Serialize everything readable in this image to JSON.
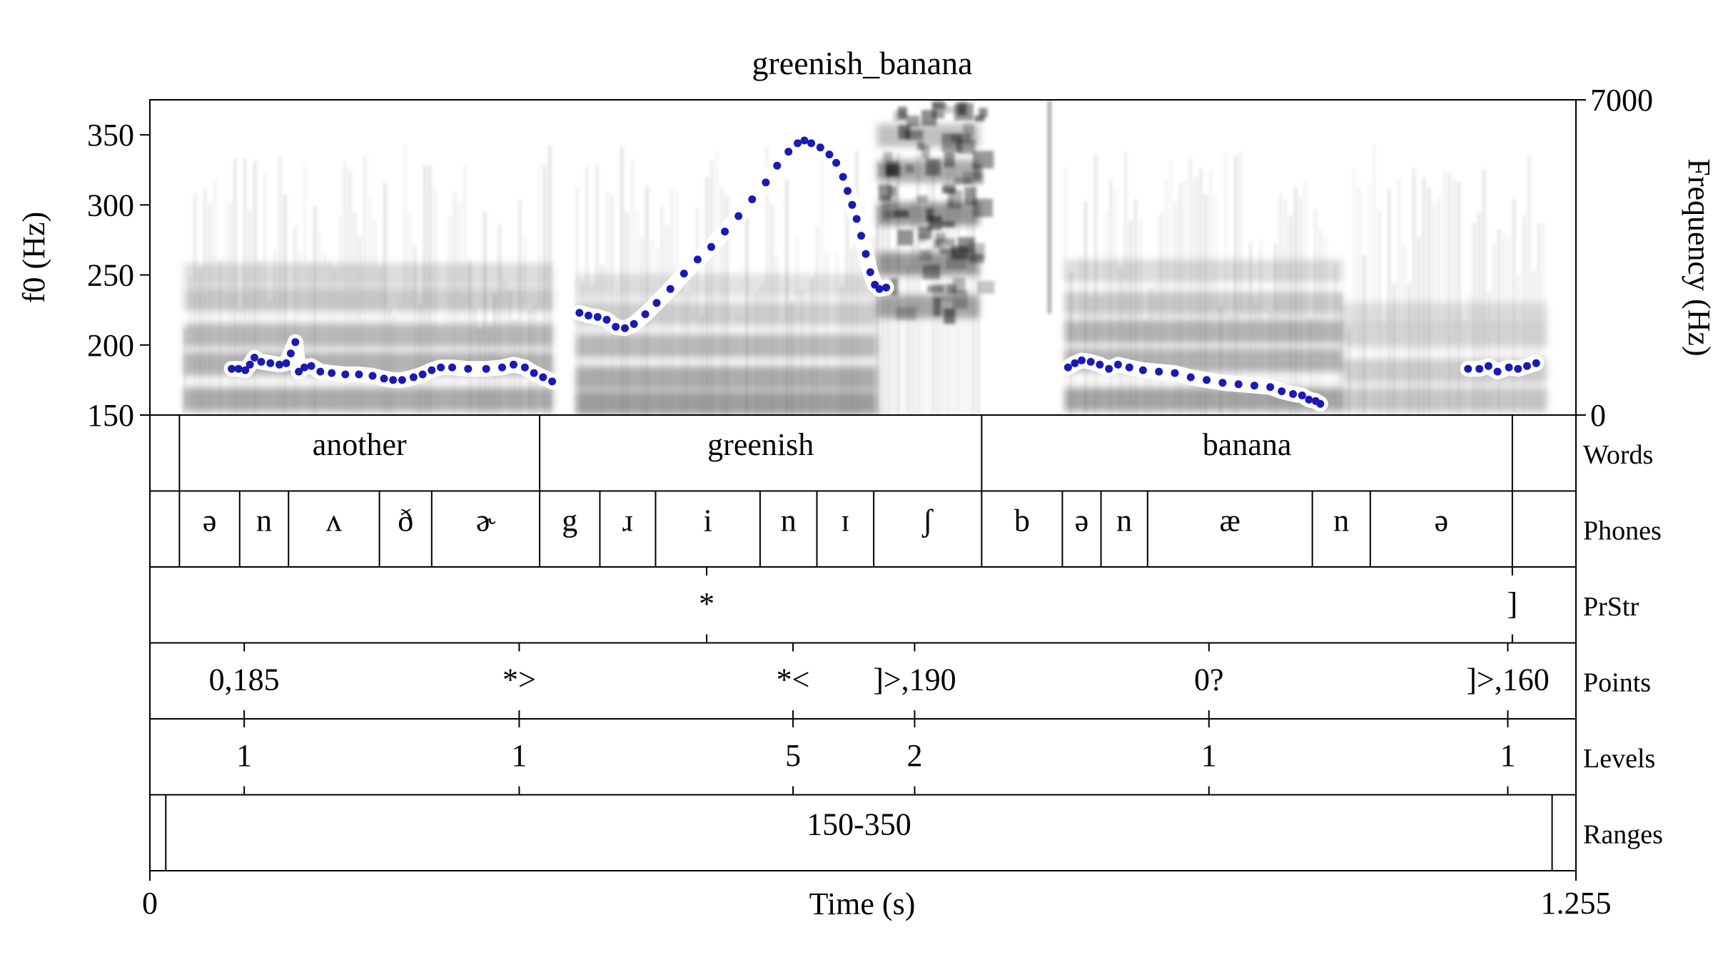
{
  "chart_data": {
    "type": "line",
    "title": "greenish_banana",
    "xlabel": "Time (s)",
    "ylabel_left": "f0 (Hz)",
    "ylabel_right": "Frequency (Hz)",
    "x_range": [
      0,
      1.255
    ],
    "x_tick_labels": [
      "0",
      "1.255"
    ],
    "f0_range": [
      150,
      375
    ],
    "f0_ticks": [
      150,
      200,
      250,
      300,
      350
    ],
    "freq_range": [
      0,
      7000
    ],
    "freq_tick_labels": [
      "0",
      "7000"
    ],
    "pitch_color": "#1a1ab4",
    "pitch_series": [
      {
        "name": "",
        "points": [
          [
            0.072,
            183
          ],
          [
            0.078,
            183
          ],
          [
            0.084,
            182
          ],
          [
            0.088,
            186
          ],
          [
            0.092,
            191
          ],
          [
            0.098,
            188
          ],
          [
            0.106,
            187
          ],
          [
            0.114,
            186
          ],
          [
            0.12,
            187
          ],
          [
            0.124,
            194
          ],
          [
            0.128,
            202
          ],
          [
            0.131,
            181
          ],
          [
            0.136,
            184
          ],
          [
            0.142,
            185
          ],
          [
            0.15,
            181
          ],
          [
            0.16,
            180
          ],
          [
            0.172,
            179
          ],
          [
            0.184,
            179
          ],
          [
            0.196,
            178
          ],
          [
            0.206,
            176
          ],
          [
            0.214,
            175
          ],
          [
            0.222,
            175
          ],
          [
            0.232,
            177
          ],
          [
            0.24,
            179
          ],
          [
            0.248,
            182
          ],
          [
            0.256,
            184
          ],
          [
            0.266,
            184
          ],
          [
            0.28,
            183
          ],
          [
            0.296,
            183
          ],
          [
            0.31,
            184
          ],
          [
            0.32,
            186
          ],
          [
            0.33,
            184
          ],
          [
            0.338,
            180
          ],
          [
            0.346,
            177
          ],
          [
            0.354,
            174
          ]
        ]
      },
      {
        "name": "",
        "points": [
          [
            0.378,
            223
          ],
          [
            0.386,
            221
          ],
          [
            0.394,
            220
          ],
          [
            0.402,
            218
          ],
          [
            0.41,
            213
          ],
          [
            0.418,
            212
          ],
          [
            0.426,
            215
          ],
          [
            0.436,
            222
          ],
          [
            0.446,
            230
          ],
          [
            0.458,
            240
          ],
          [
            0.47,
            251
          ],
          [
            0.482,
            261
          ],
          [
            0.494,
            270
          ],
          [
            0.506,
            281
          ],
          [
            0.518,
            292
          ],
          [
            0.53,
            304
          ],
          [
            0.542,
            316
          ],
          [
            0.552,
            328
          ],
          [
            0.562,
            338
          ],
          [
            0.57,
            344
          ],
          [
            0.576,
            346
          ],
          [
            0.582,
            344
          ],
          [
            0.59,
            341
          ],
          [
            0.598,
            336
          ],
          [
            0.604,
            330
          ],
          [
            0.61,
            320
          ],
          [
            0.614,
            310
          ],
          [
            0.618,
            300
          ],
          [
            0.622,
            290
          ],
          [
            0.626,
            278
          ],
          [
            0.63,
            265
          ],
          [
            0.634,
            252
          ],
          [
            0.638,
            243
          ],
          [
            0.642,
            240
          ],
          [
            0.648,
            241
          ]
        ]
      },
      {
        "name": "",
        "points": [
          [
            0.808,
            184
          ],
          [
            0.814,
            187
          ],
          [
            0.82,
            189
          ],
          [
            0.828,
            188
          ],
          [
            0.836,
            186
          ],
          [
            0.844,
            183
          ],
          [
            0.852,
            186
          ],
          [
            0.862,
            184
          ],
          [
            0.874,
            182
          ],
          [
            0.888,
            181
          ],
          [
            0.902,
            180
          ],
          [
            0.916,
            177
          ],
          [
            0.93,
            175
          ],
          [
            0.944,
            173
          ],
          [
            0.958,
            172
          ],
          [
            0.972,
            171
          ],
          [
            0.986,
            170
          ],
          [
            0.996,
            167
          ],
          [
            1.006,
            165
          ],
          [
            1.014,
            164
          ],
          [
            1.02,
            161
          ],
          [
            1.026,
            160
          ],
          [
            1.03,
            158
          ]
        ]
      },
      {
        "name": "",
        "points": [
          [
            1.16,
            183
          ],
          [
            1.17,
            183
          ],
          [
            1.178,
            185
          ],
          [
            1.186,
            181
          ],
          [
            1.196,
            184
          ],
          [
            1.204,
            183
          ],
          [
            1.212,
            185
          ],
          [
            1.22,
            187
          ]
        ]
      }
    ],
    "tiers": [
      {
        "label": "Words",
        "type": "interval",
        "intervals": [
          {
            "start": 0,
            "end": 0.026,
            "text": ""
          },
          {
            "start": 0.026,
            "end": 0.343,
            "text": "another"
          },
          {
            "start": 0.343,
            "end": 0.732,
            "text": "greenish"
          },
          {
            "start": 0.732,
            "end": 1.199,
            "text": "banana"
          },
          {
            "start": 1.199,
            "end": 1.255,
            "text": ""
          }
        ]
      },
      {
        "label": "Phones",
        "type": "interval",
        "intervals": [
          {
            "start": 0,
            "end": 0.026,
            "text": ""
          },
          {
            "start": 0.026,
            "end": 0.079,
            "text": "ə"
          },
          {
            "start": 0.079,
            "end": 0.122,
            "text": "n"
          },
          {
            "start": 0.122,
            "end": 0.202,
            "text": "ʌ"
          },
          {
            "start": 0.202,
            "end": 0.248,
            "text": "ð"
          },
          {
            "start": 0.248,
            "end": 0.343,
            "text": "ɚ"
          },
          {
            "start": 0.343,
            "end": 0.396,
            "text": "g"
          },
          {
            "start": 0.396,
            "end": 0.445,
            "text": "ɹ"
          },
          {
            "start": 0.445,
            "end": 0.537,
            "text": "i"
          },
          {
            "start": 0.537,
            "end": 0.587,
            "text": "n"
          },
          {
            "start": 0.587,
            "end": 0.637,
            "text": "ɪ"
          },
          {
            "start": 0.637,
            "end": 0.732,
            "text": "ʃ"
          },
          {
            "start": 0.732,
            "end": 0.803,
            "text": "b"
          },
          {
            "start": 0.803,
            "end": 0.837,
            "text": "ə"
          },
          {
            "start": 0.837,
            "end": 0.878,
            "text": "n"
          },
          {
            "start": 0.878,
            "end": 1.023,
            "text": "æ"
          },
          {
            "start": 1.023,
            "end": 1.074,
            "text": "n"
          },
          {
            "start": 1.074,
            "end": 1.199,
            "text": "ə"
          },
          {
            "start": 1.199,
            "end": 1.255,
            "text": ""
          }
        ]
      },
      {
        "label": "PrStr",
        "type": "point",
        "points": [
          {
            "time": 0.49,
            "text": "*"
          },
          {
            "time": 1.199,
            "text": "]"
          }
        ]
      },
      {
        "label": "Points",
        "type": "point",
        "points": [
          {
            "time": 0.083,
            "text": "0,185"
          },
          {
            "time": 0.325,
            "text": "*>"
          },
          {
            "time": 0.566,
            "text": "*<"
          },
          {
            "time": 0.673,
            "text": "]>,190"
          },
          {
            "time": 0.932,
            "text": "0?"
          },
          {
            "time": 1.195,
            "text": "]>,160"
          }
        ]
      },
      {
        "label": "Levels",
        "type": "point",
        "points": [
          {
            "time": 0.083,
            "text": "1"
          },
          {
            "time": 0.325,
            "text": "1"
          },
          {
            "time": 0.566,
            "text": "5"
          },
          {
            "time": 0.673,
            "text": "2"
          },
          {
            "time": 0.932,
            "text": "1"
          },
          {
            "time": 1.195,
            "text": "1"
          }
        ]
      },
      {
        "label": "Ranges",
        "type": "interval",
        "intervals": [
          {
            "start": 0,
            "end": 0.014,
            "text": ""
          },
          {
            "start": 0.014,
            "end": 1.234,
            "text": "150-350"
          },
          {
            "start": 1.234,
            "end": 1.255,
            "text": ""
          }
        ]
      }
    ]
  }
}
